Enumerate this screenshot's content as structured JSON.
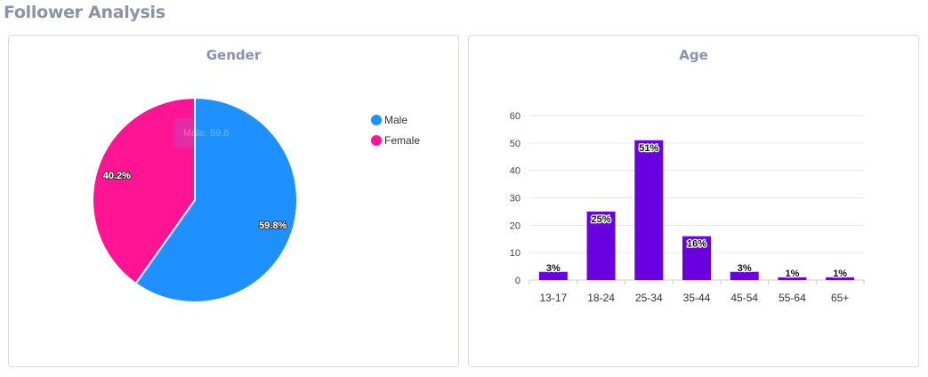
{
  "page_title": "Follower Analysis",
  "colors": {
    "male": "#1e90ff",
    "female": "#ff1493",
    "bar": "#6a00e0",
    "title": "#8a93a8"
  },
  "chart_data": [
    {
      "type": "pie",
      "title": "Gender",
      "legend_placement": "top-right",
      "slices": [
        {
          "name": "Male",
          "value": 59.8,
          "label": "59.8%"
        },
        {
          "name": "Female",
          "value": 40.2,
          "label": "40.2%"
        }
      ],
      "tooltip": {
        "label": "Male:",
        "value": "59.8"
      }
    },
    {
      "type": "bar",
      "title": "Age",
      "categories": [
        "13-17",
        "18-24",
        "25-34",
        "35-44",
        "45-54",
        "55-64",
        "65+"
      ],
      "values": [
        3,
        25,
        51,
        16,
        3,
        1,
        1
      ],
      "data_labels": [
        "3%",
        "25%",
        "51%",
        "16%",
        "3%",
        "1%",
        "1%"
      ],
      "ylim": [
        0,
        60
      ],
      "yticks": [
        "0",
        "10",
        "20",
        "30",
        "40",
        "50",
        "60"
      ],
      "grid": true
    }
  ]
}
